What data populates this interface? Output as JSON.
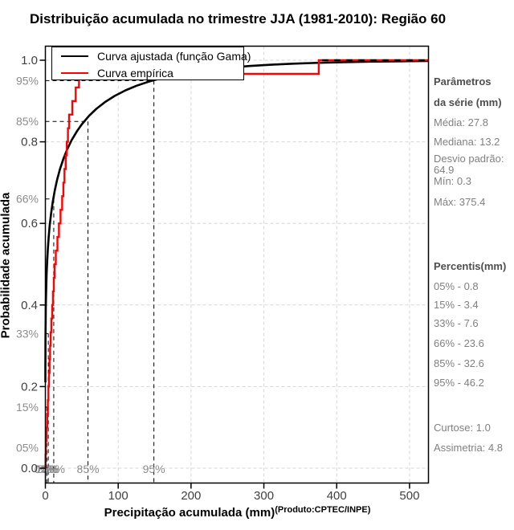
{
  "title": "Distribuição acumulada no trimestre JJA (1981-2010): Região 60",
  "legend": {
    "fitted_label": "Curva ajustada (função Gama)",
    "empirical_label": "Curva empírica"
  },
  "axes": {
    "x_label": "Precipitação acumulada (mm)",
    "x_label_sup": "(Produto:CPTEC/INPE)",
    "y_label": "Probabilidade acumulada"
  },
  "sidebar": {
    "params_header_line1": "Parâmetros",
    "params_header_line2": "da série (mm)",
    "media": "Média: 27.8",
    "mediana": "Mediana: 13.2",
    "desvio": "Desvio padrão: 64.9",
    "min": "Mín: 0.3",
    "max": "Máx: 375.4",
    "percentis_header": "Percentis(mm)",
    "p05": "05% - 0.8",
    "p15": "15% - 3.4",
    "p33": "33% - 7.6",
    "p66": "66% - 23.6",
    "p85": "85% - 32.6",
    "p95": "95% - 46.2",
    "curtose": "Curtose: 1.0",
    "assimetria": "Assimetria: 4.8"
  },
  "colors": {
    "fitted": "#000000",
    "empirical": "#ff0000",
    "grid": "#d6d6d6",
    "crosshair": "#000000",
    "tick_label": "#404040",
    "percent_label": "#8c8c8c",
    "frame": "#000000"
  },
  "chart_data": {
    "type": "line",
    "title": "Distribuição acumulada no trimestre JJA (1981-2010): Região 60",
    "xlabel": "Precipitação acumulada (mm)",
    "ylabel": "Probabilidade acumulada",
    "xlim": [
      0,
      526
    ],
    "ylim": [
      0,
      1
    ],
    "x_ticks": [
      0,
      100,
      200,
      300,
      400,
      500
    ],
    "y_ticks": [
      0.0,
      0.2,
      0.4,
      0.6,
      0.8,
      1.0
    ],
    "grid": true,
    "legend_position": "top-left",
    "percent_levels": [
      {
        "label": "05%",
        "p": 0.05,
        "cross_mm": 0.3,
        "style": "dotted"
      },
      {
        "label": "15%",
        "p": 0.15,
        "cross_mm": 2.0,
        "style": "dashed"
      },
      {
        "label": "33%",
        "p": 0.33,
        "cross_mm": 4.0,
        "style": "dashed"
      },
      {
        "label": "66%",
        "p": 0.66,
        "cross_mm": 11.5,
        "style": "dashed"
      },
      {
        "label": "85%",
        "p": 0.85,
        "cross_mm": 58.5,
        "style": "dashed"
      },
      {
        "label": "95%",
        "p": 0.95,
        "cross_mm": 149.0,
        "style": "dashed"
      }
    ],
    "series": [
      {
        "name": "Curva ajustada (função Gama)",
        "color": "#000000",
        "model": "gamma_cdf",
        "shape": 0.1835,
        "scale": 151.5,
        "sample_x": [
          0.02,
          0.05,
          0.1,
          0.15,
          0.25,
          0.4,
          0.6,
          0.9,
          1.3,
          1.8,
          2.5,
          3.4,
          4.5,
          6,
          8,
          10,
          13,
          16,
          20,
          25,
          30,
          36,
          43,
          50,
          60,
          70,
          82,
          95,
          110,
          125,
          142,
          160,
          180,
          200,
          225,
          250,
          280,
          310,
          340,
          375,
          410,
          450,
          490,
          526
        ]
      },
      {
        "name": "Curva empírica",
        "color": "#ff0000",
        "model": "empirical_step",
        "values": [
          0.3,
          0.8,
          1.7,
          2.5,
          3.4,
          4.2,
          5.0,
          5.7,
          6.5,
          7.3,
          8.3,
          9.4,
          10.5,
          11.6,
          12.7,
          14.3,
          16.5,
          18.6,
          20.8,
          23.0,
          24.7,
          26.3,
          27.9,
          29.4,
          31.0,
          32.6,
          37.1,
          41.7,
          46.2,
          375.4
        ]
      }
    ],
    "stats": {
      "mean": 27.8,
      "median": 13.2,
      "std_dev": 64.9,
      "min": 0.3,
      "max": 375.4,
      "kurtosis": 1.0,
      "skewness": 4.8
    },
    "percentiles_mm": {
      "05%": 0.8,
      "15%": 3.4,
      "33%": 7.6,
      "66%": 23.6,
      "85%": 32.6,
      "95%": 46.2
    },
    "source_note": "(Produto:CPTEC/INPE)"
  }
}
